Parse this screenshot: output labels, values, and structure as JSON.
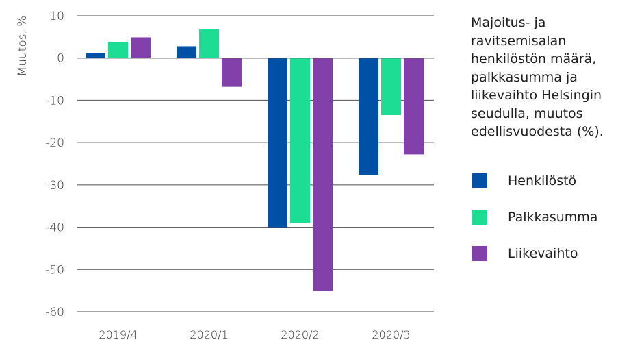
{
  "chart_data": {
    "type": "bar",
    "title": "Majoitus- ja\nravitsemisalan\nhenkilöstön määrä,\npalkkasumma ja\nliikevaihto Helsingin\nseudulla, muutos\nedellisvuodesta (%).",
    "xlabel": "",
    "ylabel": "Muutos, %",
    "ylim": [
      -60,
      10
    ],
    "yticks": [
      10,
      0,
      -10,
      -20,
      -30,
      -40,
      -50,
      -60
    ],
    "ytick_labels": [
      "10",
      "0",
      "-10",
      "-20",
      "-30",
      "-40",
      "-50",
      "-60"
    ],
    "categories": [
      "2019/4",
      "2020/1",
      "2020/2",
      "2020/3"
    ],
    "grid": true,
    "legend_position": "right",
    "series": [
      {
        "name": "Henkilöstö",
        "color": "#0050a5",
        "values": [
          1.2,
          2.8,
          -40.0,
          -27.6
        ]
      },
      {
        "name": "Palkkasumma",
        "color": "#1ddc94",
        "values": [
          3.8,
          6.8,
          -39.0,
          -13.5
        ]
      },
      {
        "name": "Liikevaihto",
        "color": "#8240aa",
        "values": [
          4.9,
          -6.8,
          -55.0,
          -22.8
        ]
      }
    ]
  }
}
